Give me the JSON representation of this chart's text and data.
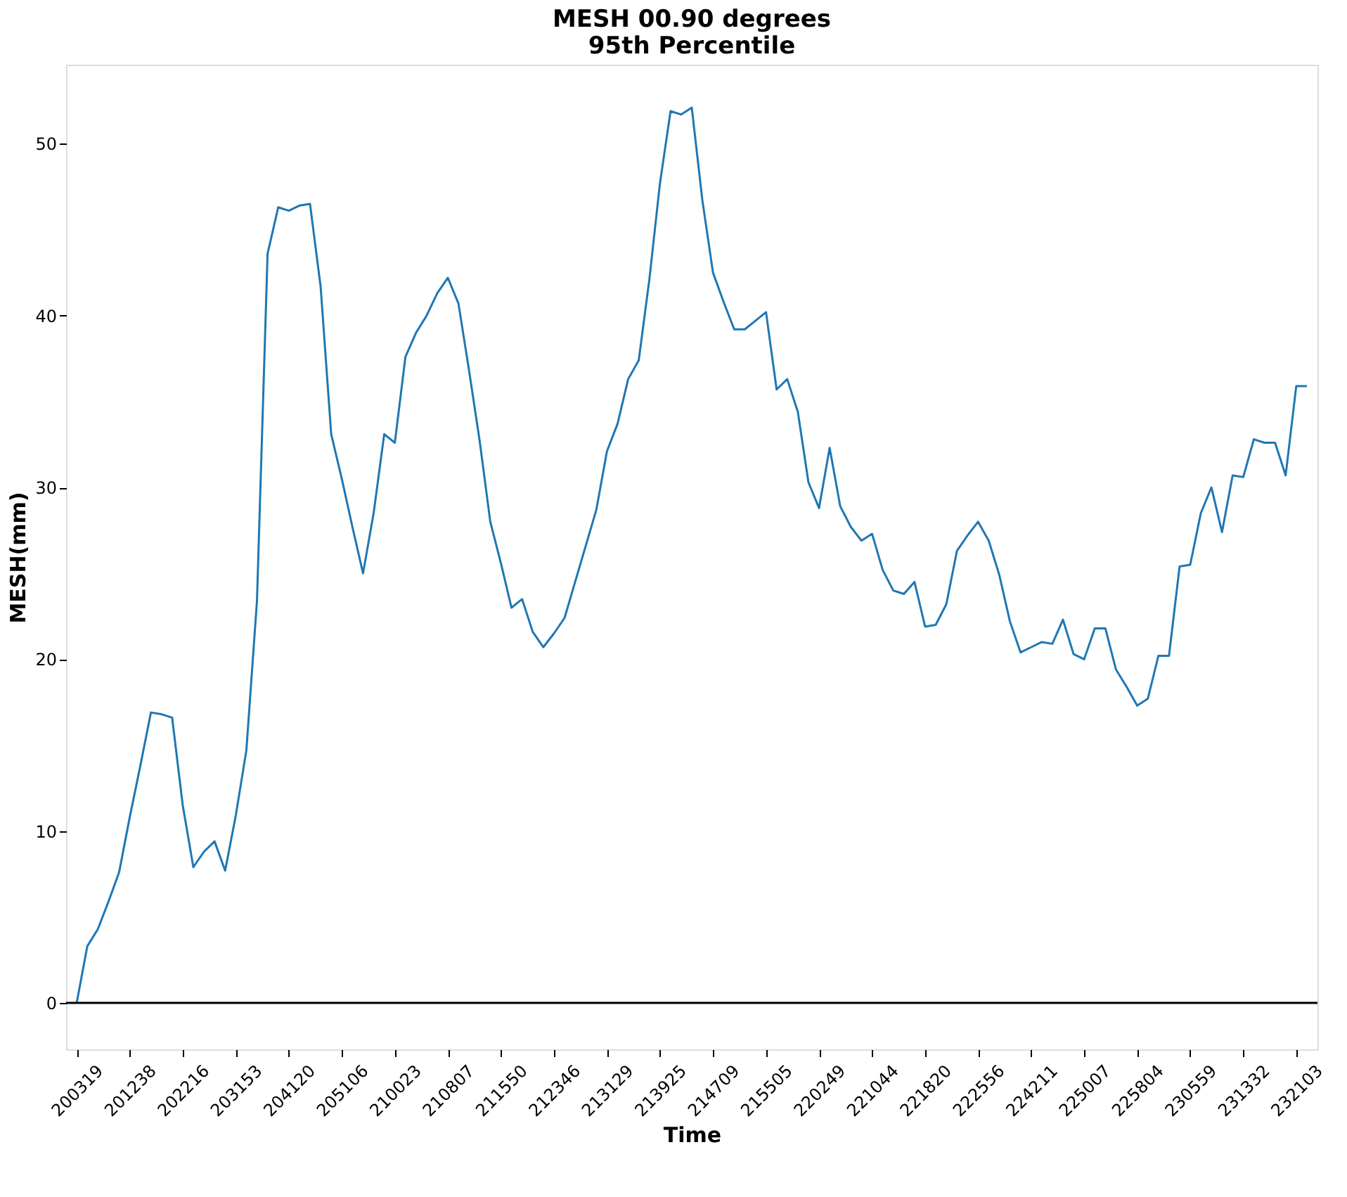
{
  "chart_data": {
    "type": "line",
    "title": [
      "MESH 00.90 degrees",
      "95th Percentile"
    ],
    "xlabel": "Time",
    "ylabel": "MESH(mm)",
    "categories": [
      "200319",
      null,
      null,
      null,
      null,
      "201238",
      null,
      null,
      null,
      null,
      "202216",
      null,
      null,
      null,
      null,
      "203153",
      null,
      null,
      null,
      null,
      "204120",
      null,
      null,
      null,
      null,
      "205106",
      null,
      null,
      null,
      null,
      "210023",
      null,
      null,
      null,
      null,
      "210807",
      null,
      null,
      null,
      null,
      "211550",
      null,
      null,
      null,
      null,
      "212346",
      null,
      null,
      null,
      null,
      "213129",
      null,
      null,
      null,
      null,
      "213925",
      null,
      null,
      null,
      null,
      "214709",
      null,
      null,
      null,
      null,
      "215505",
      null,
      null,
      null,
      null,
      "220249",
      null,
      null,
      null,
      null,
      "221044",
      null,
      null,
      null,
      null,
      "221820",
      null,
      null,
      null,
      null,
      "222556",
      null,
      null,
      null,
      null,
      "224211",
      null,
      null,
      null,
      null,
      "225007",
      null,
      null,
      null,
      null,
      "225804",
      null,
      null,
      null,
      null,
      "230559",
      null,
      null,
      null,
      null,
      "231332",
      null,
      null,
      null,
      null,
      "232103",
      null
    ],
    "series": [
      {
        "color": "#1f77b4",
        "values": [
          0,
          3.3,
          4.3,
          5.9,
          7.6,
          10.8,
          13.8,
          16.9,
          16.8,
          16.6,
          11.5,
          7.9,
          8.8,
          9.4,
          7.7,
          10.9,
          14.7,
          23.4,
          43.6,
          46.3,
          46.1,
          46.4,
          46.5,
          41.7,
          33.1,
          30.5,
          27.7,
          25.0,
          28.5,
          33.1,
          32.6,
          37.6,
          39.0,
          40.0,
          41.3,
          42.2,
          40.7,
          36.8,
          32.7,
          28.0,
          25.6,
          23.0,
          23.5,
          21.6,
          20.7,
          21.5,
          22.4,
          24.5,
          26.6,
          28.7,
          32.1,
          33.7,
          36.3,
          37.4,
          42.1,
          47.7,
          51.9,
          51.7,
          52.1,
          46.7,
          42.5,
          40.8,
          39.2,
          39.2,
          39.7,
          40.2,
          35.7,
          36.3,
          34.4,
          30.3,
          28.8,
          32.3,
          28.9,
          27.7,
          26.9,
          27.3,
          25.2,
          24.0,
          23.8,
          24.5,
          21.9,
          22.0,
          23.2,
          26.3,
          27.2,
          28.0,
          26.9,
          24.9,
          22.2,
          20.4,
          20.7,
          21.0,
          20.9,
          22.3,
          20.3,
          20.0,
          21.8,
          21.8,
          19.4,
          18.4,
          17.3,
          17.7,
          20.2,
          20.2,
          25.4,
          25.5,
          28.5,
          30.0,
          27.4,
          30.7,
          30.6,
          32.8,
          32.6,
          32.6,
          30.7,
          35.9,
          35.9
        ]
      }
    ],
    "ylim": [
      -2.7,
      54.6
    ],
    "yticks": [
      0,
      10,
      20,
      30,
      40,
      50
    ],
    "ref_lines": [
      {
        "axis": "y",
        "value": 0,
        "color": "#000000"
      }
    ],
    "grid": false,
    "marker": "none",
    "line_style": "solid"
  }
}
